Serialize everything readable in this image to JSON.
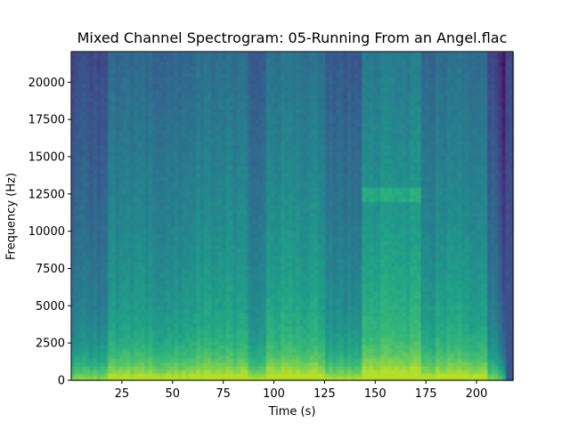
{
  "chart_data": {
    "type": "heatmap",
    "title": "Mixed Channel Spectrogram: 05-Running From an Angel.flac",
    "xlabel": "Time (s)",
    "ylabel": "Frequency (Hz)",
    "xlim": [
      0,
      218
    ],
    "ylim": [
      0,
      22050
    ],
    "x_ticks": [
      25,
      50,
      75,
      100,
      125,
      150,
      175,
      200
    ],
    "y_ticks": [
      0,
      2500,
      5000,
      7500,
      10000,
      12500,
      15000,
      17500,
      20000
    ],
    "colormap": "viridis",
    "grid": false,
    "track_end_s": 215,
    "spectral_segments": [
      {
        "start": 0,
        "end": 18,
        "level": 0.5
      },
      {
        "start": 18,
        "end": 60,
        "level": 0.62
      },
      {
        "start": 60,
        "end": 88,
        "level": 0.66
      },
      {
        "start": 88,
        "end": 97,
        "level": 0.55
      },
      {
        "start": 97,
        "end": 125,
        "level": 0.68
      },
      {
        "start": 125,
        "end": 144,
        "level": 0.56
      },
      {
        "start": 144,
        "end": 172,
        "level": 0.72
      },
      {
        "start": 172,
        "end": 180,
        "level": 0.6
      },
      {
        "start": 180,
        "end": 206,
        "level": 0.66
      },
      {
        "start": 206,
        "end": 215,
        "level": 0.48
      }
    ],
    "highlight_band": {
      "start": 144,
      "end": 172,
      "freq_low": 12000,
      "freq_high": 13000
    }
  }
}
